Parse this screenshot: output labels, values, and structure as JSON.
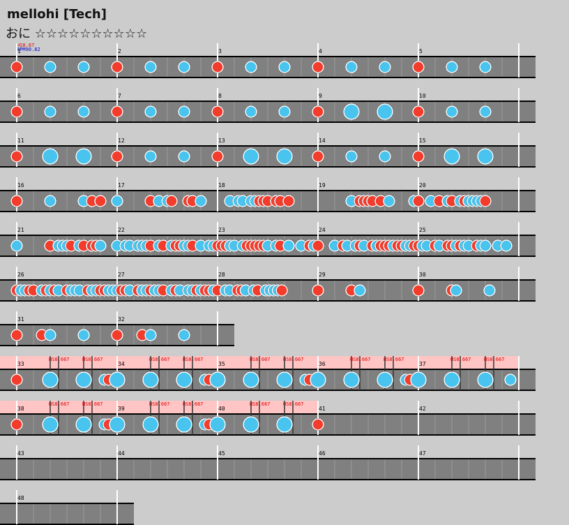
{
  "header": {
    "title": "mellohi [Tech]",
    "difficulty": "おに ☆☆☆☆☆☆☆☆☆☆",
    "scroll": "HS0.67",
    "bpm": "BPM90.82"
  },
  "rows": [
    {
      "measures": [
        {
          "number": 1,
          "notes": "dkk"
        },
        {
          "number": 2,
          "notes": "dkk"
        },
        {
          "number": 3,
          "notes": "dkk"
        },
        {
          "number": 4,
          "notes": "dkk"
        },
        {
          "number": 5,
          "notes": "dkk"
        }
      ]
    },
    {
      "measures": [
        {
          "number": 6,
          "notes": "dkk"
        },
        {
          "number": 7,
          "notes": "dkk"
        },
        {
          "number": 8,
          "notes": "dkk"
        },
        {
          "number": 9,
          "notes": "dKK"
        },
        {
          "number": 10,
          "notes": "dkk"
        }
      ]
    },
    {
      "measures": [
        {
          "number": 11,
          "notes": "dKK"
        },
        {
          "number": 12,
          "notes": "dkk"
        },
        {
          "number": 13,
          "notes": "dKK"
        },
        {
          "number": 14,
          "notes": "dkk"
        },
        {
          "number": 15,
          "notes": "dKK"
        }
      ]
    },
    {
      "measures": [
        {
          "number": 16,
          "notes": "d.......k.......k.d.d..."
        },
        {
          "number": 17,
          "notes": "k.......d.k.kd...dd.k..."
        },
        {
          "number": 18,
          "notes": "...k.kk.kkddd.dd.d......"
        },
        {
          "number": 19,
          "notes": "........k.dddd.d.k.....k"
        },
        {
          "number": 20,
          "notes": "d..k.d.kd.kdkkkkd......."
        }
      ]
    },
    {
      "measures": [
        {
          "number": 21,
          "notes": "k.......d.kkkd.kd.ddk..."
        },
        {
          "number": 22,
          "notes": "k.kk.kkkd.kd.kddkkd.k.kk"
        },
        {
          "number": 23,
          "notes": "dddkk.kdddddk.kd.k..k.dk"
        },
        {
          "number": 24,
          "notes": "d...k.dk.kdk.dkdddkddkkd"
        },
        {
          "number": 25,
          "notes": "dkk.dk.ddkdkk.dkk..k.k.."
        }
      ]
    },
    {
      "measures": [
        {
          "number": 26,
          "notes": "dkkdd.kdkdk.dkkk.dkkddkk"
        },
        {
          "number": 27,
          "notes": "kddk.dkkdkkd.kdk.kkdkddk"
        },
        {
          "number": 28,
          "notes": "d.kk.ddk.kd.kkkkd........"
        },
        {
          "number": 29,
          "notes": "d.......d.k............."
        },
        {
          "number": 30,
          "notes": "d.......dk.......k......"
        }
      ]
    },
    {
      "measures": [
        {
          "number": 31,
          "notes": "d..dk...k..."
        },
        {
          "number": 32,
          "notes": "d..dk...k..."
        }
      ]
    },
    {
      "measures": [
        {
          "number": 33,
          "notes": "d.......K.......K....kd.",
          "scroll": [
            "HS8.667",
            "HS8.667"
          ]
        },
        {
          "number": 34,
          "notes": "K.......K.......K....kd.",
          "scroll": [
            "HS8.667",
            "HS8.667"
          ]
        },
        {
          "number": 35,
          "notes": "K.......K.......K....kd.",
          "scroll": [
            "HS8.667",
            "HS8.667"
          ]
        },
        {
          "number": 36,
          "notes": "K.......K.......K....kd.",
          "scroll": [
            "HS8.667",
            "HS8.667"
          ]
        },
        {
          "number": 37,
          "notes": "K.......K.......K.....k.",
          "scroll": [
            "HS8.667",
            "HS8.667"
          ]
        }
      ]
    },
    {
      "measures": [
        {
          "number": 38,
          "notes": "d.......K.......K....kd.",
          "scroll": [
            "HS8.667",
            "HS8.667"
          ]
        },
        {
          "number": 39,
          "notes": "K.......K.......K....kd.",
          "scroll": [
            "HS8.667",
            "HS8.667"
          ]
        },
        {
          "number": 40,
          "notes": "K.......K.......K.......",
          "scroll": [
            "HS8.667",
            "HS8.667"
          ]
        },
        {
          "number": 41,
          "notes": "d"
        },
        {
          "number": 42
        }
      ]
    },
    {
      "measures": [
        {
          "number": 43
        },
        {
          "number": 44
        },
        {
          "number": 45
        },
        {
          "number": 46
        },
        {
          "number": 47
        }
      ]
    },
    {
      "measures": [
        {
          "number": 48
        }
      ]
    }
  ]
}
